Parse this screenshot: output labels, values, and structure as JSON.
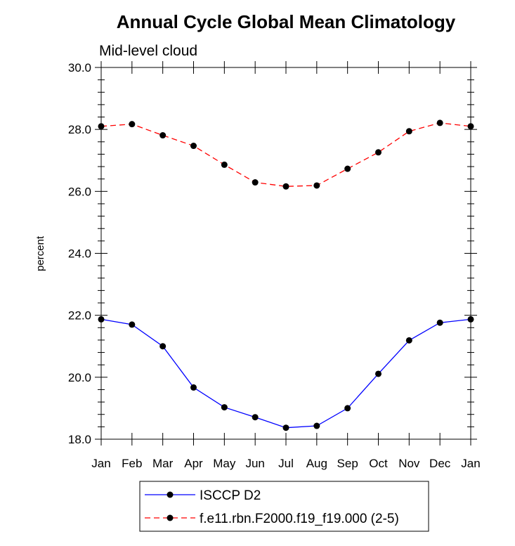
{
  "chart_data": {
    "type": "line",
    "title": "Annual Cycle Global Mean Climatology",
    "subtitle": "Mid-level cloud",
    "xlabel": "",
    "ylabel": "percent",
    "categories": [
      "Jan",
      "Feb",
      "Mar",
      "Apr",
      "May",
      "Jun",
      "Jul",
      "Aug",
      "Sep",
      "Oct",
      "Nov",
      "Dec",
      "Jan"
    ],
    "yticks": [
      "18.0",
      "20.0",
      "22.0",
      "24.0",
      "26.0",
      "28.0",
      "30.0"
    ],
    "ylim": [
      18,
      30
    ],
    "grid": false,
    "legend_position": "bottom-center",
    "series": [
      {
        "name": "ISCCP D2",
        "color": "#0000ff",
        "line_style": "solid",
        "marker": "filled-circle",
        "values": [
          21.87,
          21.7,
          21.0,
          19.67,
          19.03,
          18.71,
          18.37,
          18.43,
          19.0,
          20.11,
          21.19,
          21.76,
          21.87
        ]
      },
      {
        "name": "f.e11.rbn.F2000.f19_f19.000 (2-5)",
        "color": "#ff0000",
        "line_style": "dashed",
        "marker": "filled-circle",
        "values": [
          28.1,
          28.17,
          27.81,
          27.47,
          26.86,
          26.29,
          26.16,
          26.19,
          26.73,
          27.26,
          27.94,
          28.21,
          28.1
        ]
      }
    ]
  }
}
